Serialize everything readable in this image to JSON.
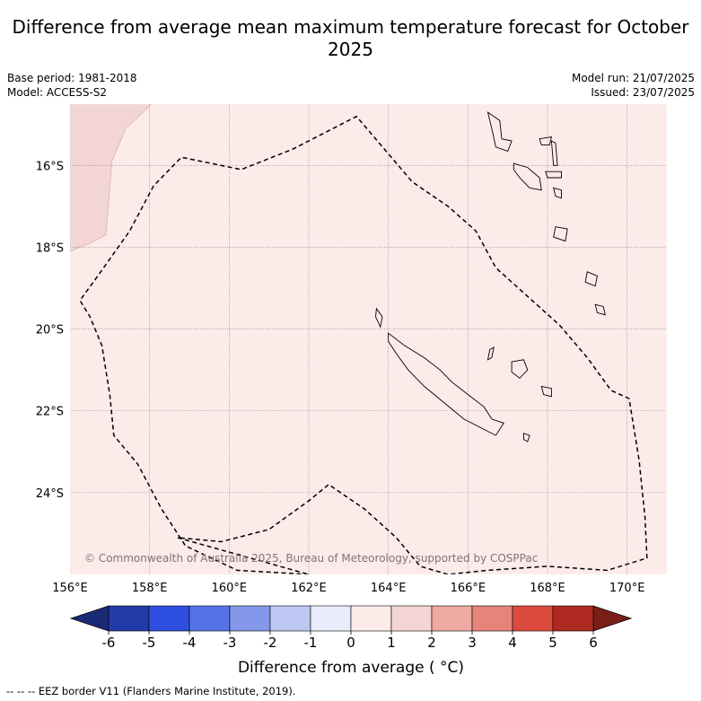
{
  "title": "Difference from average mean maximum temperature forecast for October 2025",
  "meta": {
    "base_period": "Base period: 1981-2018",
    "model": "Model: ACCESS-S2",
    "model_run": "Model run: 21/07/2025",
    "issued": "Issued: 23/07/2025"
  },
  "map": {
    "lon_range": [
      156,
      171
    ],
    "lat_range": [
      -26.0,
      -14.5
    ],
    "lon_ticks": [
      {
        "value": 156,
        "label": "156°E"
      },
      {
        "value": 158,
        "label": "158°E"
      },
      {
        "value": 160,
        "label": "160°E"
      },
      {
        "value": 162,
        "label": "162°E"
      },
      {
        "value": 164,
        "label": "164°E"
      },
      {
        "value": 166,
        "label": "166°E"
      },
      {
        "value": 168,
        "label": "168°E"
      },
      {
        "value": 170,
        "label": "170°E"
      }
    ],
    "lat_ticks": [
      {
        "value": -16,
        "label": "16°S"
      },
      {
        "value": -18,
        "label": "18°S"
      },
      {
        "value": -20,
        "label": "20°S"
      },
      {
        "value": -22,
        "label": "22°S"
      },
      {
        "value": -24,
        "label": "24°S"
      }
    ],
    "background_color": "#fcebe9",
    "warm_region_color": "#f3d6d3",
    "copyright": "© Commonwealth of Australia 2025, Bureau of Meteorology, supported by COSPPac",
    "eez_border": [
      [
        162.0,
        -26.0
      ],
      [
        160.2,
        -25.9
      ],
      [
        158.9,
        -25.3
      ],
      [
        158.3,
        -24.4
      ],
      [
        157.7,
        -23.3
      ],
      [
        157.1,
        -22.6
      ],
      [
        157.0,
        -21.6
      ],
      [
        156.8,
        -20.4
      ],
      [
        156.5,
        -19.7
      ],
      [
        156.25,
        -19.3
      ],
      [
        156.7,
        -18.7
      ],
      [
        157.5,
        -17.6
      ],
      [
        158.1,
        -16.5
      ],
      [
        158.8,
        -15.8
      ],
      [
        160.3,
        -16.1
      ],
      [
        161.6,
        -15.6
      ],
      [
        163.2,
        -14.8
      ],
      [
        163.9,
        -15.6
      ],
      [
        164.6,
        -16.4
      ],
      [
        165.5,
        -17.0
      ],
      [
        166.2,
        -17.6
      ],
      [
        166.7,
        -18.5
      ],
      [
        167.5,
        -19.2
      ],
      [
        168.3,
        -19.9
      ],
      [
        169.0,
        -20.7
      ],
      [
        169.6,
        -21.5
      ],
      [
        170.05,
        -21.7
      ],
      [
        170.3,
        -23.2
      ],
      [
        170.45,
        -24.6
      ],
      [
        170.5,
        -25.6
      ],
      [
        169.5,
        -25.9
      ],
      [
        168.0,
        -25.8
      ],
      [
        166.5,
        -25.9
      ],
      [
        165.5,
        -26.0
      ],
      [
        164.8,
        -25.8
      ],
      [
        164.2,
        -25.1
      ],
      [
        163.4,
        -24.4
      ],
      [
        162.5,
        -23.8
      ],
      [
        162.0,
        -24.2
      ],
      [
        161.0,
        -24.9
      ],
      [
        159.8,
        -25.2
      ],
      [
        158.7,
        -25.1
      ]
    ],
    "warm_region_polygon": [
      [
        156.0,
        -14.5
      ],
      [
        158.05,
        -14.5
      ],
      [
        157.4,
        -15.1
      ],
      [
        157.05,
        -15.9
      ],
      [
        156.95,
        -17.2
      ],
      [
        156.9,
        -17.7
      ],
      [
        156.5,
        -17.9
      ],
      [
        156.0,
        -18.1
      ]
    ],
    "islands": [
      {
        "name": "new-caledonia",
        "points": [
          [
            164.0,
            -20.1
          ],
          [
            164.4,
            -20.4
          ],
          [
            164.9,
            -20.7
          ],
          [
            165.3,
            -21.0
          ],
          [
            165.6,
            -21.3
          ],
          [
            166.0,
            -21.6
          ],
          [
            166.4,
            -21.9
          ],
          [
            166.6,
            -22.2
          ],
          [
            166.9,
            -22.3
          ],
          [
            166.7,
            -22.6
          ],
          [
            166.3,
            -22.4
          ],
          [
            165.9,
            -22.2
          ],
          [
            165.4,
            -21.8
          ],
          [
            164.9,
            -21.4
          ],
          [
            164.5,
            -21.0
          ],
          [
            164.2,
            -20.6
          ],
          [
            164.0,
            -20.3
          ]
        ]
      },
      {
        "name": "belep",
        "points": [
          [
            163.7,
            -19.5
          ],
          [
            163.85,
            -19.7
          ],
          [
            163.8,
            -19.95
          ],
          [
            163.68,
            -19.7
          ]
        ]
      },
      {
        "name": "ouvea",
        "points": [
          [
            166.55,
            -20.5
          ],
          [
            166.65,
            -20.45
          ],
          [
            166.6,
            -20.7
          ],
          [
            166.5,
            -20.75
          ]
        ]
      },
      {
        "name": "lifou",
        "points": [
          [
            167.1,
            -20.8
          ],
          [
            167.4,
            -20.75
          ],
          [
            167.5,
            -21.0
          ],
          [
            167.3,
            -21.2
          ],
          [
            167.1,
            -21.05
          ]
        ]
      },
      {
        "name": "mare",
        "points": [
          [
            167.85,
            -21.4
          ],
          [
            168.1,
            -21.45
          ],
          [
            168.1,
            -21.65
          ],
          [
            167.9,
            -21.6
          ]
        ]
      },
      {
        "name": "isle-of-pines",
        "points": [
          [
            167.4,
            -22.55
          ],
          [
            167.55,
            -22.6
          ],
          [
            167.5,
            -22.75
          ],
          [
            167.4,
            -22.7
          ]
        ]
      },
      {
        "name": "espiritu-santo",
        "points": [
          [
            166.5,
            -14.7
          ],
          [
            166.8,
            -14.9
          ],
          [
            166.85,
            -15.35
          ],
          [
            167.1,
            -15.4
          ],
          [
            167.0,
            -15.65
          ],
          [
            166.7,
            -15.55
          ],
          [
            166.6,
            -15.1
          ]
        ]
      },
      {
        "name": "malekula",
        "points": [
          [
            167.15,
            -15.95
          ],
          [
            167.5,
            -16.05
          ],
          [
            167.8,
            -16.3
          ],
          [
            167.85,
            -16.6
          ],
          [
            167.55,
            -16.55
          ],
          [
            167.3,
            -16.3
          ],
          [
            167.15,
            -16.1
          ]
        ]
      },
      {
        "name": "efate",
        "points": [
          [
            168.2,
            -17.5
          ],
          [
            168.5,
            -17.55
          ],
          [
            168.45,
            -17.85
          ],
          [
            168.15,
            -17.75
          ]
        ]
      },
      {
        "name": "erromango",
        "points": [
          [
            169.0,
            -18.6
          ],
          [
            169.25,
            -18.7
          ],
          [
            169.2,
            -18.95
          ],
          [
            168.95,
            -18.85
          ]
        ]
      },
      {
        "name": "tanna",
        "points": [
          [
            169.2,
            -19.4
          ],
          [
            169.4,
            -19.45
          ],
          [
            169.45,
            -19.65
          ],
          [
            169.25,
            -19.6
          ]
        ]
      },
      {
        "name": "ambae",
        "points": [
          [
            167.8,
            -15.35
          ],
          [
            168.1,
            -15.3
          ],
          [
            168.05,
            -15.5
          ],
          [
            167.85,
            -15.5
          ]
        ]
      },
      {
        "name": "pentecost",
        "points": [
          [
            168.1,
            -15.4
          ],
          [
            168.2,
            -15.45
          ],
          [
            168.25,
            -16.0
          ],
          [
            168.15,
            -16.0
          ]
        ]
      },
      {
        "name": "ambrym",
        "points": [
          [
            167.95,
            -16.15
          ],
          [
            168.35,
            -16.15
          ],
          [
            168.35,
            -16.3
          ],
          [
            168.0,
            -16.3
          ]
        ]
      },
      {
        "name": "epi",
        "points": [
          [
            168.15,
            -16.55
          ],
          [
            168.35,
            -16.6
          ],
          [
            168.35,
            -16.8
          ],
          [
            168.2,
            -16.75
          ]
        ]
      }
    ],
    "colorbar": {
      "label": "Difference from average ( °C)",
      "ticks": [
        "-6",
        "-5",
        "-4",
        "-3",
        "-2",
        "-1",
        "0",
        "1",
        "2",
        "3",
        "4",
        "5",
        "6"
      ],
      "low_extend_color": "#1a2a75",
      "high_extend_color": "#7a1f18",
      "colors": [
        "#233aa9",
        "#2e4fdf",
        "#5573e6",
        "#8398ea",
        "#bfc7f3",
        "#e8ecfb",
        "#fcebe9",
        "#f3d6d3",
        "#eeaaa3",
        "#e6837b",
        "#dc4b3e",
        "#ae2a21"
      ]
    },
    "footnote": "--  --  -- EEZ border V11 (Flanders Marine Institute, 2019)."
  }
}
